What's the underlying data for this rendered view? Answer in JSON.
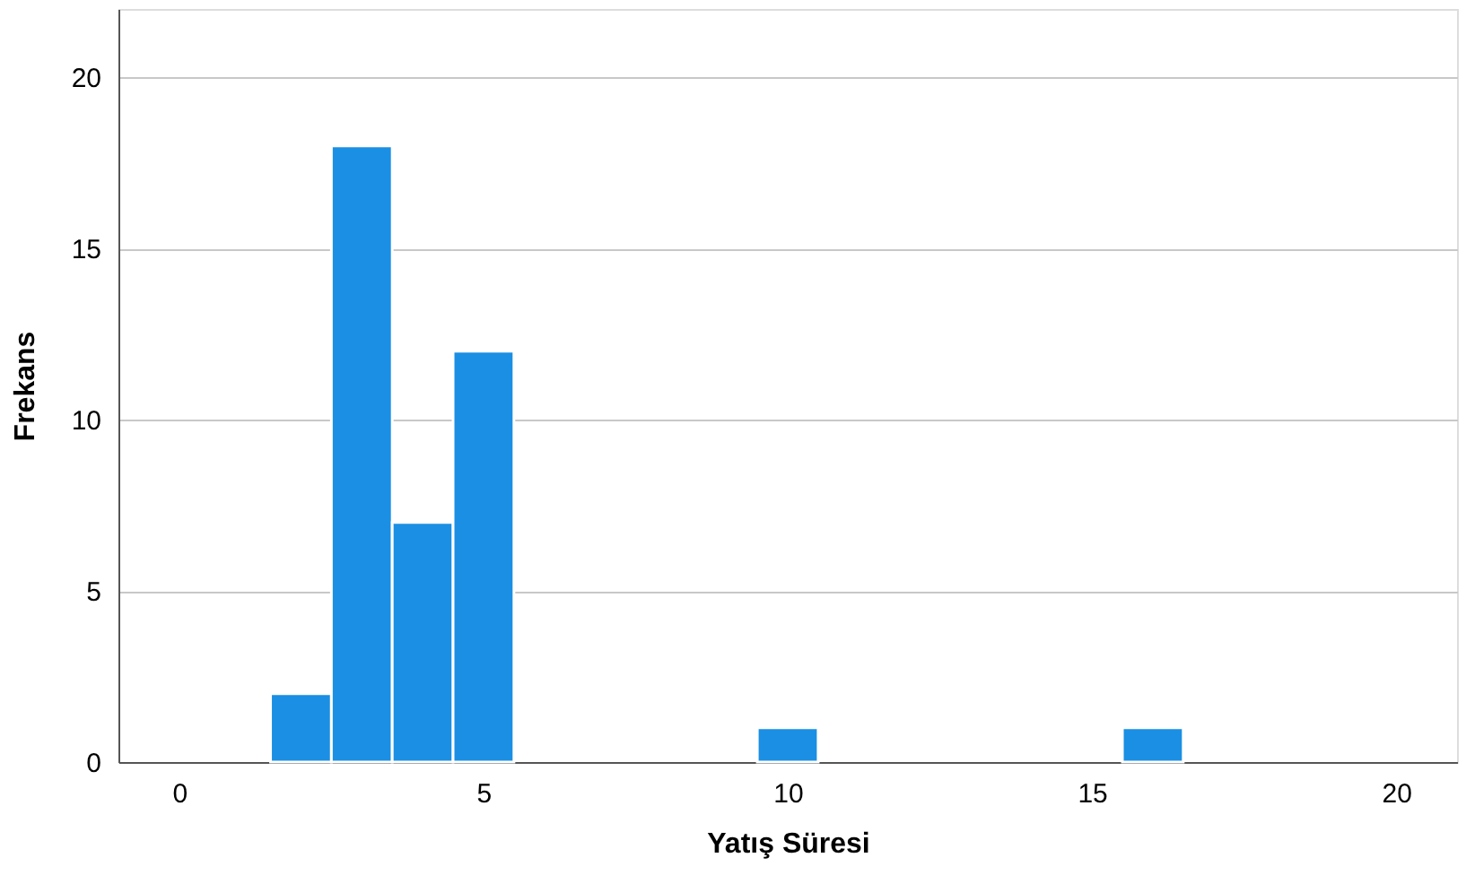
{
  "chart_data": {
    "type": "histogram",
    "xlabel": "Yatış Süresi",
    "ylabel": "Frekans",
    "bins": [
      1.5,
      2.5,
      3.5,
      4.5,
      5.5,
      6.5,
      7.5,
      8.5,
      9.5,
      10.5,
      11.5,
      12.5,
      13.5,
      14.5,
      15.5,
      16.5
    ],
    "values": [
      2,
      18,
      7,
      12,
      0,
      0,
      0,
      0,
      1,
      0,
      0,
      0,
      0,
      0,
      1
    ],
    "color": "#1a8fe3",
    "xlim": [
      -1,
      21
    ],
    "xticks": [
      0,
      5,
      10,
      15,
      20
    ],
    "ylim": [
      0,
      22
    ],
    "yticks": [
      0,
      5,
      10,
      15,
      20
    ],
    "grid": "y"
  }
}
